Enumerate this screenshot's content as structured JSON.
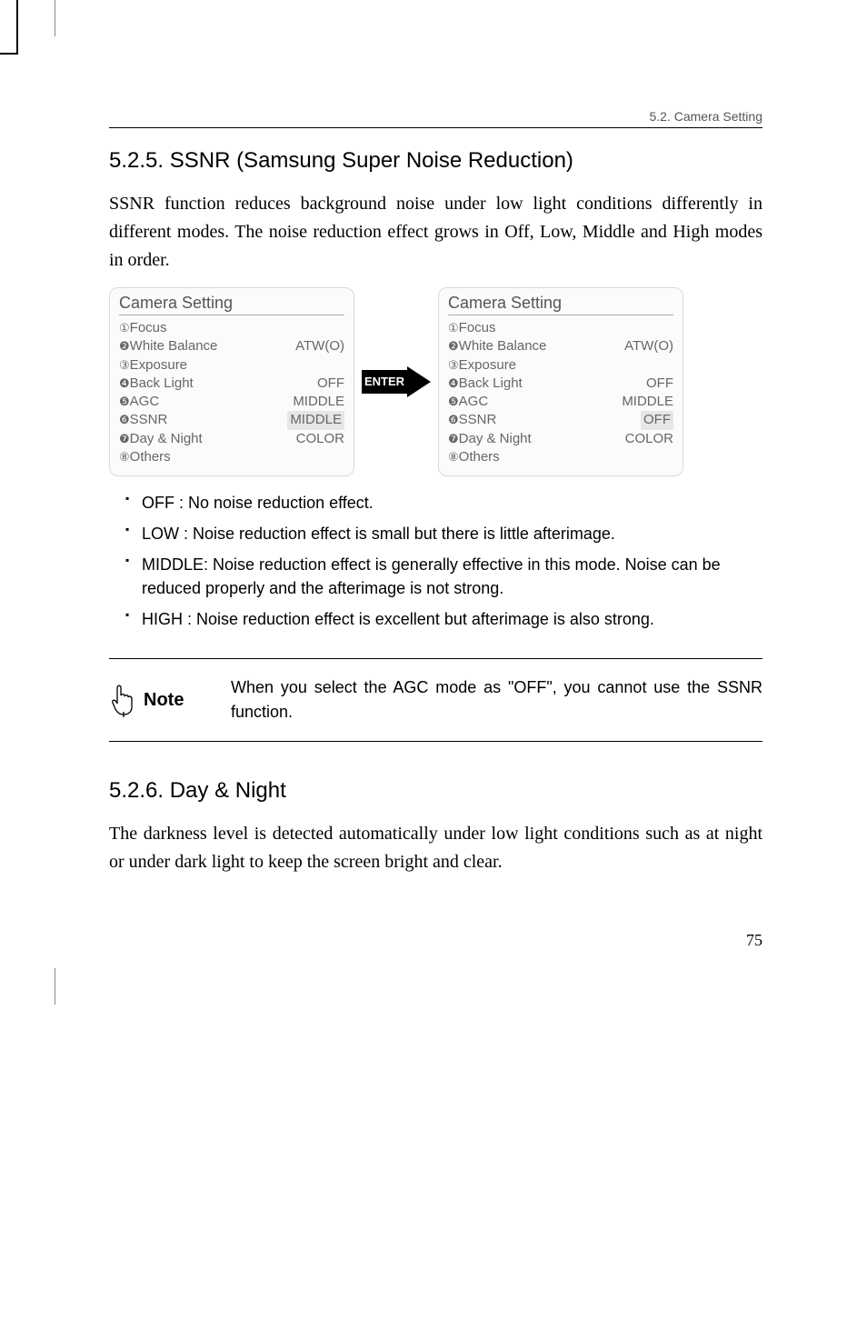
{
  "header": {
    "breadcrumb": "5.2. Camera Setting"
  },
  "section_ssnr": {
    "heading": "5.2.5. SSNR (Samsung Super Noise Reduction)",
    "body": "SSNR function reduces background noise under low light conditions differently in different modes. The noise reduction effect grows in Off, Low, Middle and High modes in order."
  },
  "panel_left": {
    "title": "Camera Setting",
    "rows": [
      {
        "num": "①",
        "label": "Focus",
        "value": ""
      },
      {
        "num": "❷",
        "label": "White Balance",
        "value": "ATW(O)"
      },
      {
        "num": "③",
        "label": "Exposure",
        "value": ""
      },
      {
        "num": "❹",
        "label": "Back Light",
        "value": "OFF"
      },
      {
        "num": "❺",
        "label": "AGC",
        "value": "MIDDLE"
      },
      {
        "num": "❻",
        "label": "SSNR",
        "value": "MIDDLE",
        "highlight": true
      },
      {
        "num": "❼",
        "label": "Day & Night",
        "value": "COLOR"
      },
      {
        "num": "⑧",
        "label": "Others",
        "value": ""
      }
    ]
  },
  "enter_label": "ENTER",
  "panel_right": {
    "title": "Camera Setting",
    "rows": [
      {
        "num": "①",
        "label": "Focus",
        "value": ""
      },
      {
        "num": "❷",
        "label": "White Balance",
        "value": "ATW(O)"
      },
      {
        "num": "③",
        "label": "Exposure",
        "value": ""
      },
      {
        "num": "❹",
        "label": "Back Light",
        "value": "OFF"
      },
      {
        "num": "❺",
        "label": "AGC",
        "value": "MIDDLE"
      },
      {
        "num": "❻",
        "label": "SSNR",
        "value": "OFF",
        "highlight": true
      },
      {
        "num": "❼",
        "label": "Day & Night",
        "value": "COLOR"
      },
      {
        "num": "⑧",
        "label": "Others",
        "value": ""
      }
    ]
  },
  "bullets": [
    "OFF : No noise reduction effect.",
    "LOW : Noise reduction effect is small but there is little afterimage.",
    "MIDDLE: Noise reduction effect is generally effective in this mode. Noise can be reduced properly and the afterimage is not strong.",
    "HIGH : Noise reduction effect is excellent but afterimage is also strong."
  ],
  "note": {
    "label": "Note",
    "text": "When you select the AGC mode as \"OFF\", you cannot use the SSNR function."
  },
  "section_dn": {
    "heading": "5.2.6. Day & Night",
    "body": "The darkness level is detected automatically under low light conditions such as at night or under dark light to keep the screen bright and clear."
  },
  "page_number": "75",
  "colors": {
    "panel_bg": "#fbfbfb",
    "panel_border": "#d8d8d8",
    "text_muted": "#666666"
  }
}
